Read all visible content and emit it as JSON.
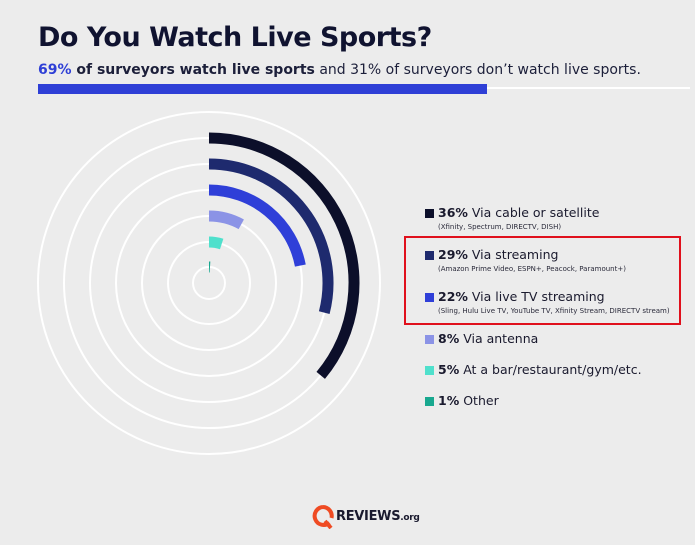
{
  "header": {
    "title": "Do You Watch Live Sports?",
    "subtitle_hl": "69%",
    "subtitle_bold": " of surveyors watch live sports",
    "subtitle_rest": " and 31% of surveyors don’t watch live sports."
  },
  "summary_bar": {
    "watch_pct": 69
  },
  "chart_data": {
    "type": "radial-bar",
    "unit": "%",
    "series": [
      {
        "value": 36,
        "label": "Via cable or satellite",
        "sublabel": "(Xfinity, Spectrum, DIRECTV, DISH)",
        "color": "#0c0f2a"
      },
      {
        "value": 29,
        "label": "Via streaming",
        "sublabel": "(Amazon Prime Video, ESPN+, Peacock, Paramount+)",
        "color": "#1e2a6e"
      },
      {
        "value": 22,
        "label": "Via live TV streaming",
        "sublabel": "(Sling, Hulu Live TV, YouTube TV, Xfinity Stream, DIRECTV stream)",
        "color": "#2f3fd8"
      },
      {
        "value": 8,
        "label": "Via antenna",
        "sublabel": "",
        "color": "#8b93e6"
      },
      {
        "value": 5,
        "label": "At a bar/restaurant/gym/etc.",
        "sublabel": "",
        "color": "#4fe0cc"
      },
      {
        "value": 1,
        "label": "Other",
        "sublabel": "",
        "color": "#18a88f"
      }
    ],
    "pct_labels": [
      "36%",
      "29%",
      "22%",
      "8%",
      "5%",
      "1%"
    ]
  },
  "footer": {
    "brand": "REVIEWS",
    "tld": ".org",
    "logo_icon": "q-logo-icon",
    "logo_color": "#ef4b23"
  }
}
